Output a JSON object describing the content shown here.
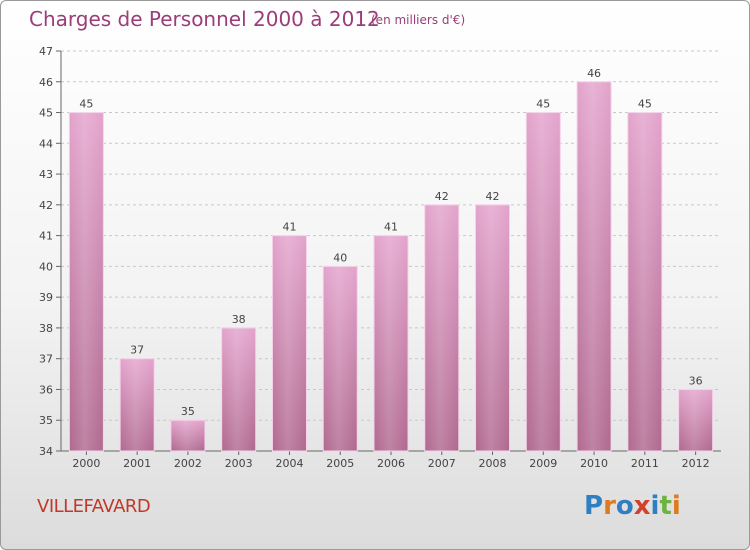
{
  "header": {
    "title": "Charges de Personnel 2000 à 2012",
    "unit_note": "(en milliers d'€)"
  },
  "footer": {
    "commune": "VILLEFAVARD",
    "logo_text": "Proxiti"
  },
  "colors": {
    "title": "#9a3d78",
    "commune": "#c0392b",
    "bar_top": "#e3a3cc",
    "bar_bottom": "#b0688f",
    "logo": [
      "#2f7fc1",
      "#e07a1f",
      "#2f7fc1",
      "#d2412b",
      "#2f7fc1",
      "#6db33f",
      "#e07a1f"
    ]
  },
  "chart_data": {
    "type": "bar",
    "categories": [
      "2000",
      "2001",
      "2002",
      "2003",
      "2004",
      "2005",
      "2006",
      "2007",
      "2008",
      "2009",
      "2010",
      "2011",
      "2012"
    ],
    "values": [
      45,
      37,
      35,
      38,
      41,
      40,
      41,
      42,
      42,
      45,
      46,
      45,
      36
    ],
    "data_labels": [
      "45",
      "37",
      "35",
      "38",
      "41",
      "40",
      "41",
      "42",
      "42",
      "45",
      "46",
      "45",
      "36"
    ],
    "title": "Charges de Personnel 2000 à 2012",
    "xlabel": "",
    "ylabel": "",
    "ylim": [
      34,
      47
    ],
    "yticks": [
      34,
      35,
      36,
      37,
      38,
      39,
      40,
      41,
      42,
      43,
      44,
      45,
      46,
      47
    ],
    "grid": true,
    "legend": "none"
  }
}
